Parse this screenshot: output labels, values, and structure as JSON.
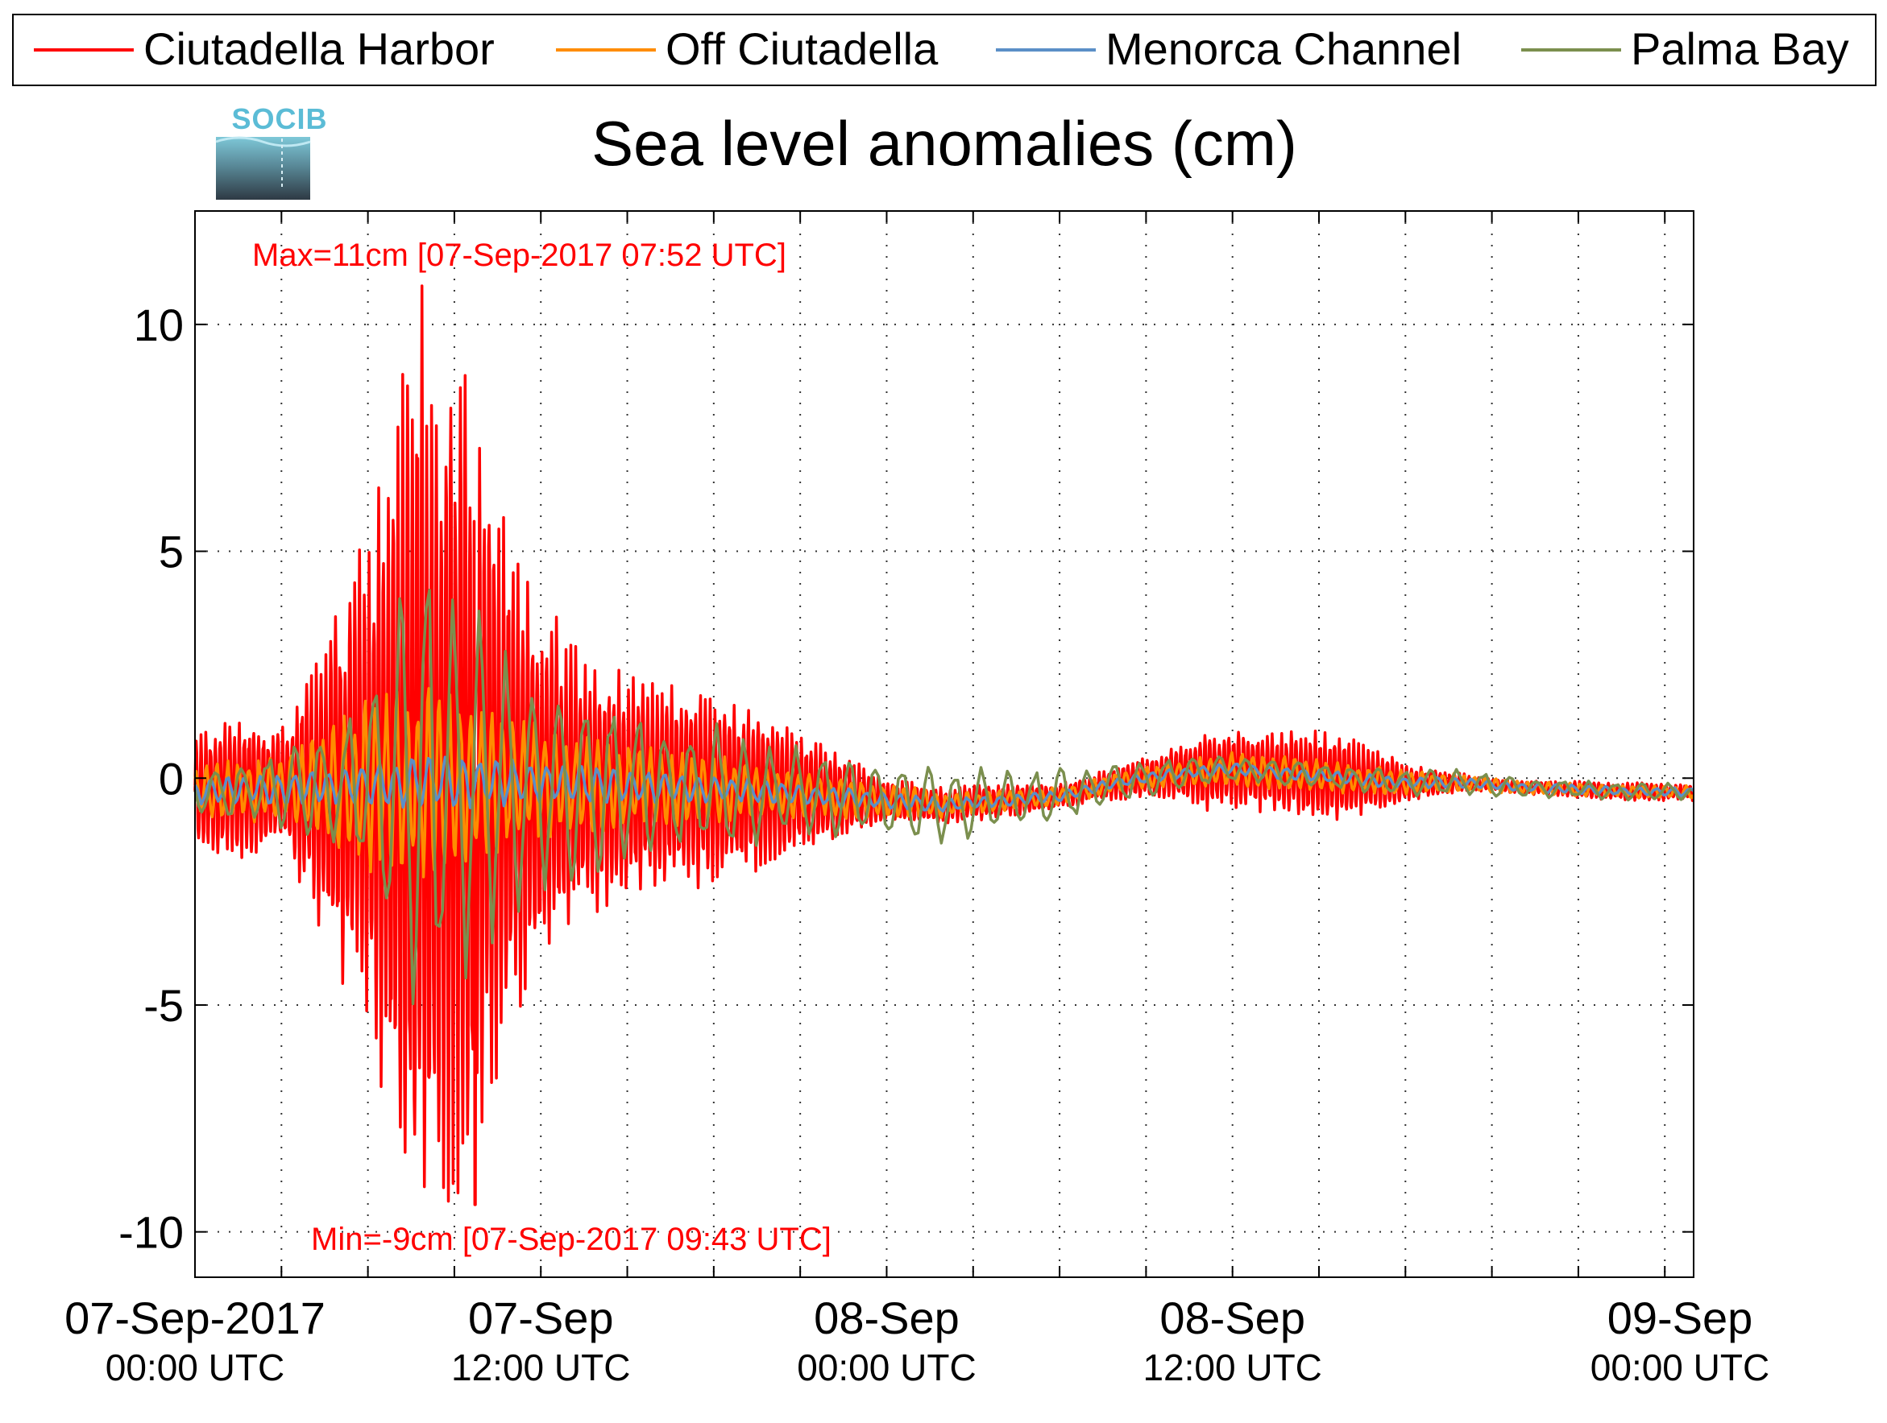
{
  "chart_data": {
    "type": "line",
    "title": "Sea level anomalies (cm)",
    "logo_text": "SOCIB",
    "legend_position": "top",
    "grid": true,
    "x_range": [
      "07-Sep-2017 00:00 UTC",
      "09-Sep-2017 04:00 UTC"
    ],
    "x_grid_step_hours": 3,
    "ylim": [
      -11,
      12.5
    ],
    "y_ticks": [
      10,
      5,
      0,
      -5,
      -10
    ],
    "y_tick_labels": [
      "10",
      "5",
      "0",
      "-5",
      "-10"
    ],
    "x_ticks": [
      {
        "hour": 0,
        "line1": "07-Sep-2017",
        "line2": "00:00 UTC"
      },
      {
        "hour": 12,
        "line1": "07-Sep",
        "line2": "12:00 UTC"
      },
      {
        "hour": 24,
        "line1": "08-Sep",
        "line2": "00:00 UTC"
      },
      {
        "hour": 36,
        "line1": "08-Sep",
        "line2": "12:00 UTC"
      },
      {
        "hour": 48,
        "line1": "09-Sep",
        "line2": "00:00 UTC"
      }
    ],
    "annotations": {
      "max": {
        "text": "Max=11cm [07-Sep-2017 07:52 UTC]",
        "value": 10.85,
        "time": "07-Sep-2017 07:52 UTC",
        "color": "#ff0000"
      },
      "min": {
        "text": "Min=-9cm [07-Sep-2017 09:43 UTC]",
        "value": -9.4,
        "time": "07-Sep-2017 09:43 UTC",
        "color": "#ff0000"
      }
    },
    "series": [
      {
        "name": "Ciutadella Harbor",
        "color": "#ff0000",
        "period_minutes": 10,
        "envelope": [
          [
            0,
            1.2
          ],
          [
            1,
            1.5
          ],
          [
            2,
            1.6
          ],
          [
            3,
            1.4
          ],
          [
            4,
            2.6
          ],
          [
            5,
            4.2
          ],
          [
            6,
            5.6
          ],
          [
            7,
            8.5
          ],
          [
            7.87,
            10.85
          ],
          [
            8.5,
            9.5
          ],
          [
            9.4,
            9.4
          ],
          [
            10,
            7.8
          ],
          [
            11,
            5.5
          ],
          [
            12,
            4.0
          ],
          [
            13,
            3.4
          ],
          [
            14,
            2.8
          ],
          [
            15,
            2.5
          ],
          [
            16,
            2.3
          ],
          [
            17,
            2.3
          ],
          [
            18,
            2.1
          ],
          [
            19,
            1.9
          ],
          [
            20,
            1.7
          ],
          [
            21,
            1.3
          ],
          [
            22,
            1.1
          ],
          [
            23,
            0.8
          ],
          [
            24,
            0.5
          ],
          [
            25,
            0.45
          ],
          [
            26,
            0.4
          ],
          [
            27,
            0.4
          ],
          [
            28,
            0.35
          ],
          [
            29,
            0.35
          ],
          [
            30,
            0.3
          ],
          [
            31,
            0.3
          ],
          [
            32,
            0.4
          ],
          [
            33,
            0.45
          ],
          [
            34,
            0.6
          ],
          [
            35,
            0.9
          ],
          [
            36,
            0.9
          ],
          [
            37,
            0.9
          ],
          [
            38,
            0.95
          ],
          [
            39,
            1.0
          ],
          [
            40,
            0.9
          ],
          [
            41,
            0.7
          ],
          [
            42,
            0.45
          ],
          [
            43,
            0.3
          ],
          [
            44,
            0.2
          ],
          [
            45,
            0.15
          ],
          [
            46,
            0.15
          ],
          [
            47,
            0.15
          ],
          [
            48,
            0.2
          ],
          [
            49,
            0.2
          ],
          [
            50,
            0.2
          ],
          [
            52,
            0.2
          ]
        ]
      },
      {
        "name": "Off Ciutadella",
        "color": "#ff8c00",
        "period_minutes": 22,
        "envelope": [
          [
            0,
            0.6
          ],
          [
            3,
            0.8
          ],
          [
            5,
            1.5
          ],
          [
            6,
            2.0
          ],
          [
            7,
            2.1
          ],
          [
            8,
            2.3
          ],
          [
            9,
            2.0
          ],
          [
            10,
            1.8
          ],
          [
            11,
            1.6
          ],
          [
            12,
            1.4
          ],
          [
            14,
            1.1
          ],
          [
            16,
            0.9
          ],
          [
            18,
            0.8
          ],
          [
            20,
            0.6
          ],
          [
            22,
            0.5
          ],
          [
            24,
            0.4
          ],
          [
            26,
            0.3
          ],
          [
            28,
            0.25
          ],
          [
            30,
            0.2
          ],
          [
            33,
            0.25
          ],
          [
            36,
            0.4
          ],
          [
            38,
            0.4
          ],
          [
            40,
            0.35
          ],
          [
            42,
            0.3
          ],
          [
            44,
            0.2
          ],
          [
            46,
            0.15
          ],
          [
            48,
            0.15
          ],
          [
            52,
            0.15
          ]
        ]
      },
      {
        "name": "Menorca Channel",
        "color": "#5b8fc7",
        "period_minutes": 35,
        "envelope": [
          [
            0,
            0.3
          ],
          [
            3,
            0.35
          ],
          [
            6,
            0.5
          ],
          [
            8,
            0.6
          ],
          [
            10,
            0.6
          ],
          [
            12,
            0.5
          ],
          [
            15,
            0.4
          ],
          [
            18,
            0.3
          ],
          [
            21,
            0.25
          ],
          [
            24,
            0.2
          ],
          [
            27,
            0.15
          ],
          [
            30,
            0.12
          ],
          [
            33,
            0.12
          ],
          [
            36,
            0.15
          ],
          [
            40,
            0.15
          ],
          [
            44,
            0.12
          ],
          [
            48,
            0.1
          ],
          [
            52,
            0.1
          ]
        ]
      },
      {
        "name": "Palma Bay",
        "color": "#7b8f4e",
        "period_minutes": 55,
        "envelope": [
          [
            0,
            0.5
          ],
          [
            3,
            0.9
          ],
          [
            5,
            1.5
          ],
          [
            6,
            2.5
          ],
          [
            7,
            4.0
          ],
          [
            8,
            6.0
          ],
          [
            9,
            5.2
          ],
          [
            10,
            4.0
          ],
          [
            11,
            3.2
          ],
          [
            12,
            2.5
          ],
          [
            13,
            2.2
          ],
          [
            14,
            2.0
          ],
          [
            16,
            1.8
          ],
          [
            18,
            1.5
          ],
          [
            20,
            1.2
          ],
          [
            22,
            1.0
          ],
          [
            24,
            0.9
          ],
          [
            25,
            0.9
          ],
          [
            27,
            0.8
          ],
          [
            29,
            0.7
          ],
          [
            30,
            0.7
          ],
          [
            31,
            0.55
          ],
          [
            33,
            0.45
          ],
          [
            36,
            0.3
          ],
          [
            40,
            0.3
          ],
          [
            44,
            0.3
          ],
          [
            48,
            0.2
          ],
          [
            52,
            0.2
          ]
        ]
      }
    ],
    "baseline": [
      [
        0,
        -0.3
      ],
      [
        4,
        -0.2
      ],
      [
        8,
        -0.1
      ],
      [
        12,
        -0.1
      ],
      [
        16,
        -0.2
      ],
      [
        20,
        -0.3
      ],
      [
        24,
        -0.5
      ],
      [
        26,
        -0.6
      ],
      [
        28,
        -0.5
      ],
      [
        30,
        -0.4
      ],
      [
        32,
        -0.1
      ],
      [
        34,
        0.1
      ],
      [
        36,
        0.2
      ],
      [
        38,
        0.1
      ],
      [
        40,
        0.0
      ],
      [
        42,
        -0.1
      ],
      [
        44,
        -0.1
      ],
      [
        46,
        -0.2
      ],
      [
        48,
        -0.25
      ],
      [
        50,
        -0.3
      ],
      [
        52,
        -0.3
      ]
    ]
  }
}
